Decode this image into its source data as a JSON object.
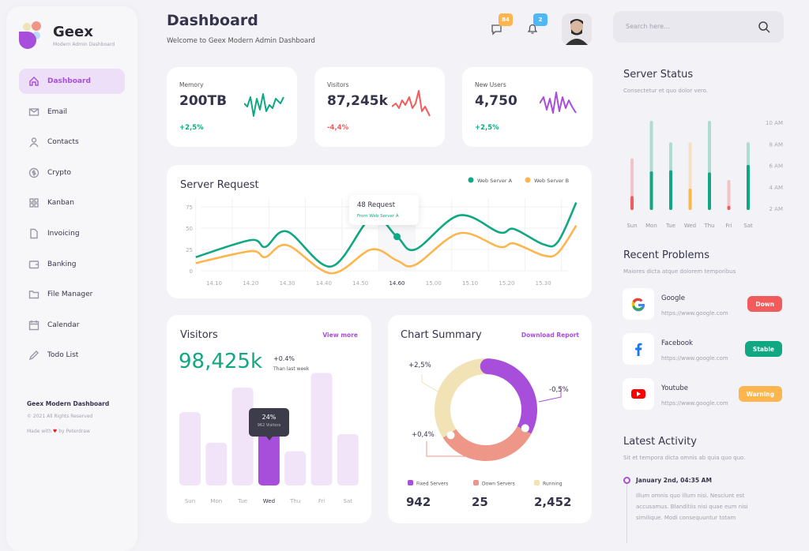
{
  "brand": {
    "name": "Geex",
    "tagline": "Modern Admin Dashboard"
  },
  "sidebar": {
    "items": [
      {
        "label": "Dashboard",
        "icon": "home-icon",
        "active": true
      },
      {
        "label": "Email",
        "icon": "mail-icon"
      },
      {
        "label": "Contacts",
        "icon": "user-icon"
      },
      {
        "label": "Crypto",
        "icon": "dollar-icon"
      },
      {
        "label": "Kanban",
        "icon": "grid-icon"
      },
      {
        "label": "Invoicing",
        "icon": "file-icon"
      },
      {
        "label": "Banking",
        "icon": "wallet-icon"
      },
      {
        "label": "File Manager",
        "icon": "folder-icon"
      },
      {
        "label": "Calendar",
        "icon": "calendar-icon"
      },
      {
        "label": "Todo List",
        "icon": "pencil-icon"
      }
    ],
    "footer": {
      "title": "Geex Modern Dashboard",
      "copyright": "© 2021 All Rights Reserved",
      "made_with": "Made with",
      "by": "by Peterdraw"
    }
  },
  "header": {
    "title": "Dashboard",
    "subtitle": "Welcome to Geex Modern Admin Dashboard",
    "messages_count": "84",
    "notifications_count": "2",
    "search_placeholder": "Search here..."
  },
  "stats": [
    {
      "label": "Memory",
      "value": "200TB",
      "change": "+2,5%",
      "color": "#0fa882"
    },
    {
      "label": "Visitors",
      "value": "87,245k",
      "change": "-4,4%",
      "color": "#f15b5b"
    },
    {
      "label": "New Users",
      "value": "4,750",
      "change": "+2,5%",
      "color": "#a74fdb"
    }
  ],
  "server_request": {
    "title": "Server Request",
    "tooltip_value": "48 Request",
    "tooltip_source": "From Web Server A"
  },
  "visitors": {
    "title": "Visitors",
    "link": "View more",
    "value": "98,425k",
    "change": "+0.4%",
    "change_note": "Than last week",
    "tooltip_pct": "24%",
    "tooltip_note": "962 Visitors"
  },
  "summary": {
    "title": "Chart Summary",
    "link": "Download Report"
  },
  "server_status": {
    "title": "Server Status",
    "subtitle": "Consectetur et quo dolor vero."
  },
  "problems": {
    "title": "Recent Problems",
    "subtitle": "Maiores dicta atque dolorem temporibus",
    "items": [
      {
        "name": "Google",
        "url": "https://www.google.com",
        "status": "Down",
        "color": "#f15b5b"
      },
      {
        "name": "Facebook",
        "url": "https://www.google.com",
        "status": "Stable",
        "color": "#0fa882"
      },
      {
        "name": "Youtube",
        "url": "https://www.google.com",
        "status": "Warning",
        "color": "#fdb64e"
      }
    ]
  },
  "activity": {
    "title": "Latest Activity",
    "subtitle": "Sit et tempora dicta omnis ab quia quo quo.",
    "items": [
      {
        "date": "January 2nd, 04:35 AM",
        "text1": "Illum omnis quo illum nisi. Nesciunt est",
        "text2": "accusamus. Blanditiis nisi quae eum nisi",
        "text3": "similique. Modi consequuntur totam"
      }
    ]
  },
  "chart_data": [
    {
      "type": "line",
      "title": "Server Request",
      "yticks": [
        0,
        25,
        50,
        75
      ],
      "ylim": [
        -5,
        80
      ],
      "categories": [
        "14.10",
        "14.20",
        "14.30",
        "14.40",
        "14.50",
        "14.60",
        "15.00",
        "15.10",
        "15.20",
        "15.30"
      ],
      "highlight": "14.60",
      "legend": "top-right",
      "series": [
        {
          "name": "Web Server A",
          "color": "#0fa882",
          "x": [
            -0.5,
            1,
            1.4,
            2,
            3.2,
            4.3,
            5,
            5.5,
            6.7,
            7.8,
            8.2,
            9,
            9.4,
            9.9
          ],
          "values": [
            16,
            36,
            28,
            46,
            5,
            62,
            40,
            25,
            65,
            45,
            49,
            31,
            34,
            80
          ]
        },
        {
          "name": "Web Server B",
          "color": "#fdb64e",
          "x": [
            -0.5,
            1,
            1.4,
            2,
            3.2,
            4.3,
            5,
            5.5,
            6.7,
            7.8,
            8.2,
            9,
            9.4,
            9.9
          ],
          "values": [
            9,
            23,
            16,
            30,
            -3,
            25,
            12,
            7,
            44,
            28,
            32,
            18,
            21,
            53
          ]
        }
      ]
    },
    {
      "type": "bar",
      "title": "Server Status",
      "categories": [
        "Sun",
        "Mon",
        "Tue",
        "Wed",
        "Thu",
        "Fri",
        "Sat"
      ],
      "yticks": [
        "2 AM",
        "4 AM",
        "6 AM",
        "8 AM",
        "10 AM"
      ],
      "ylim": [
        2,
        10
      ],
      "values": [
        3,
        5.3,
        5.4,
        3.7,
        5.2,
        2.1,
        5.9
      ],
      "totals": [
        6.5,
        10,
        8,
        8,
        10,
        4.5,
        8
      ],
      "colors": [
        "#f15b5b",
        "#0fa882",
        "#0fa882",
        "#fdb64e",
        "#0fa882",
        "#f15b5b",
        "#0fa882"
      ]
    },
    {
      "type": "bar",
      "title": "Visitors",
      "categories": [
        "Sun",
        "Mon",
        "Tue",
        "Wed",
        "Thu",
        "Fri",
        "Sat"
      ],
      "values": [
        60,
        35,
        80,
        52,
        28,
        92,
        42
      ],
      "highlight": "Wed",
      "color": "#a74fdb",
      "muted_color": "#f1e4f8"
    },
    {
      "type": "pie",
      "title": "Chart Summary",
      "donut": true,
      "slices": [
        {
          "name": "Fixed Servers",
          "value": 942,
          "share": 0.32,
          "change": "-0,5%",
          "color": "#a74fdb"
        },
        {
          "name": "Down Servers",
          "value": 25,
          "share": 0.33,
          "change": "+0,4%",
          "color": "#ee9788"
        },
        {
          "name": "Running",
          "value": 2452,
          "share": 0.35,
          "change": "+2,5%",
          "color": "#f1e3b6"
        }
      ]
    }
  ]
}
